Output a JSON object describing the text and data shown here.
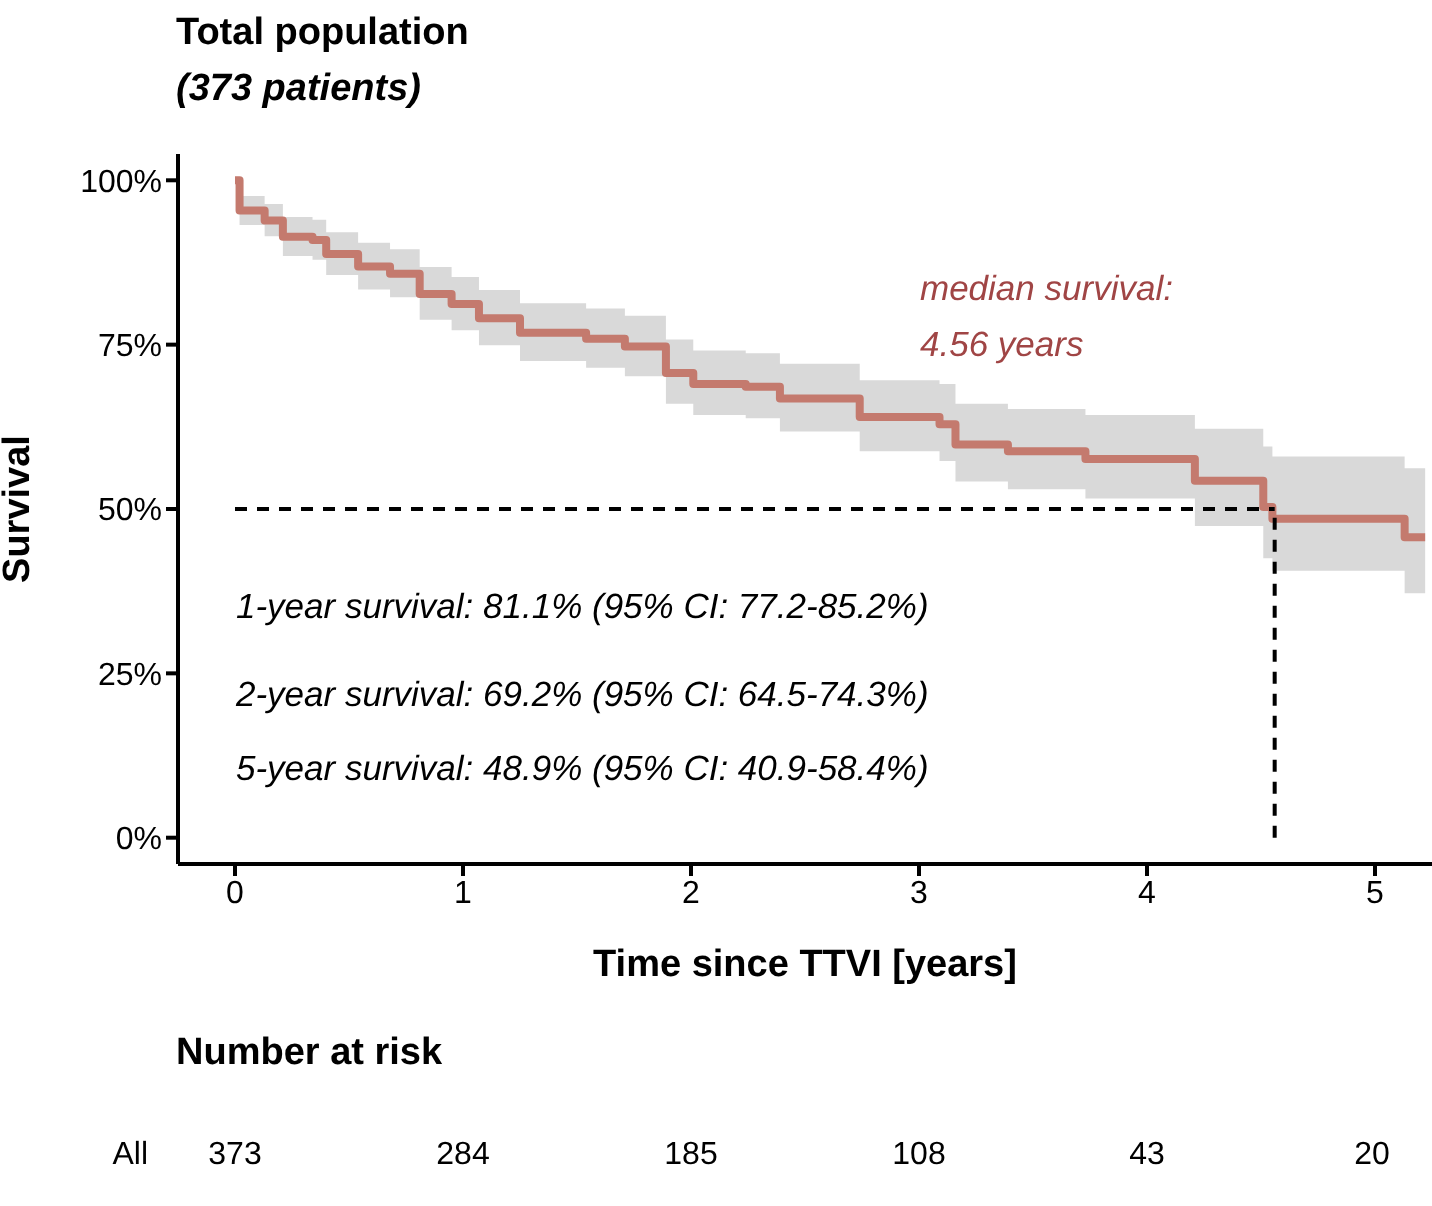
{
  "chart_data": [
    {
      "type": "step",
      "title": "Total population",
      "subtitle": "(373 patients)",
      "xlabel": "Time since TTVI [years]",
      "ylabel": "Survival",
      "xlim": [
        -0.25,
        5.25
      ],
      "xticks": [
        0,
        1,
        2,
        3,
        4,
        5
      ],
      "ylim": [
        -4,
        104
      ],
      "yticks": [
        {
          "value": 0,
          "label": "0%"
        },
        {
          "value": 25,
          "label": "25%"
        },
        {
          "value": 50,
          "label": "50%"
        },
        {
          "value": 75,
          "label": "75%"
        },
        {
          "value": 100,
          "label": "100%"
        }
      ],
      "line_style": "solid",
      "marker": "none",
      "series": [
        {
          "color": "#c47a6e",
          "x": [
            0,
            0.02,
            0.13,
            0.21,
            0.34,
            0.4,
            0.54,
            0.68,
            0.81,
            0.95,
            1.07,
            1.25,
            1.54,
            1.71,
            1.89,
            2.01,
            2.24,
            2.39,
            2.74,
            3.09,
            3.16,
            3.39,
            3.73,
            4.21,
            4.51,
            4.55,
            5.13,
            5.22
          ],
          "values": [
            100,
            95.4,
            93.9,
            91.4,
            90.9,
            88.8,
            86.9,
            85.8,
            82.7,
            81.2,
            79,
            76.8,
            75.9,
            74.7,
            70.7,
            69,
            68.6,
            66.8,
            64,
            62.9,
            59.8,
            58.8,
            57.6,
            54.3,
            50.3,
            48.5,
            45.7,
            45.7
          ],
          "lower": [
            100,
            93.2,
            91.5,
            88.5,
            87.9,
            85.6,
            83.4,
            82.2,
            78.8,
            77.2,
            74.9,
            72.5,
            71.5,
            70.2,
            66,
            64.3,
            63.8,
            61.8,
            58.8,
            57.3,
            54.2,
            53,
            51.6,
            47.4,
            42.5,
            40.6,
            37.2,
            37.2
          ],
          "upper": [
            100,
            97.6,
            96.4,
            94.4,
            94,
            92.1,
            90.5,
            89.5,
            86.8,
            85.3,
            83.3,
            81.3,
            80.5,
            79.4,
            75.8,
            74.1,
            73.7,
            72.1,
            69.6,
            69,
            66,
            65.2,
            64.3,
            62.2,
            59.5,
            58,
            56.2,
            56.2
          ]
        }
      ],
      "ref_lines": [
        {
          "axis": "y",
          "value": 50,
          "line_style": "dashed",
          "color": "#000000"
        },
        {
          "axis": "x",
          "value": 4.56,
          "line_style": "dashed",
          "color": "#000000"
        }
      ],
      "annotations": [
        "median survival:",
        "4.56 years",
        "1-year survival: 81.1% (95% CI: 77.2-85.2%)",
        "2-year survival: 69.2% (95% CI: 64.5-74.3%)",
        "5-year survival: 48.9% (95% CI: 40.9-58.4%)"
      ]
    },
    {
      "type": "other",
      "title": "Number at risk",
      "categories": [
        null,
        null,
        null,
        null,
        null,
        null
      ],
      "data_labels": true,
      "series": [
        {
          "name": "All",
          "values": [
            373,
            284,
            185,
            108,
            43,
            20
          ]
        }
      ]
    }
  ]
}
